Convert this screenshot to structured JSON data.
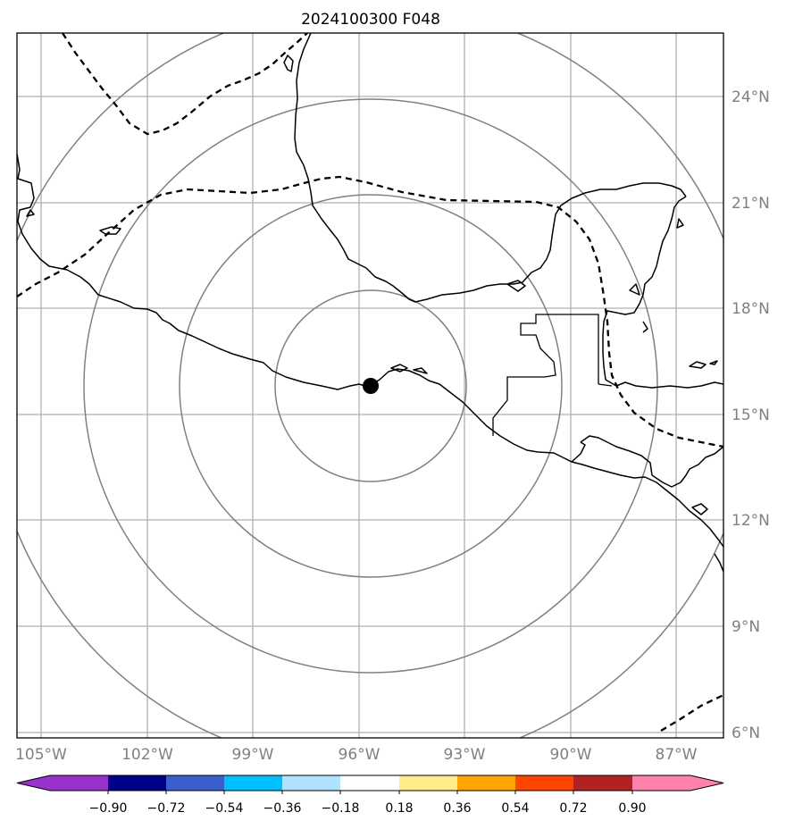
{
  "title": "2024100300 F048",
  "lon_labels": [
    "105°W",
    "102°W",
    "99°W",
    "96°W",
    "93°W",
    "90°W",
    "87°W"
  ],
  "lat_labels": [
    "24°N",
    "21°N",
    "18°N",
    "15°N",
    "12°N",
    "9°N",
    "6°N"
  ],
  "colorbar": {
    "tick_labels": [
      "−0.90",
      "−0.72",
      "−0.54",
      "−0.36",
      "−0.18",
      "0.18",
      "0.36",
      "0.54",
      "0.72",
      "0.90"
    ],
    "colors": [
      "#9932cc",
      "#00008b",
      "#3a5fcd",
      "#00bfff",
      "#b0e2ff",
      "#ffffff",
      "#ffec8b",
      "#ffa500",
      "#ff4500",
      "#b22222",
      "#ff82ab"
    ]
  },
  "colors": {
    "grid": "#b0b0b0",
    "range_rings": "#808080",
    "coast": "#000000",
    "contour": "#000000",
    "label_text": "#808080"
  },
  "storm_center": {
    "lon": "96°W region",
    "marker": "filled-circle"
  }
}
